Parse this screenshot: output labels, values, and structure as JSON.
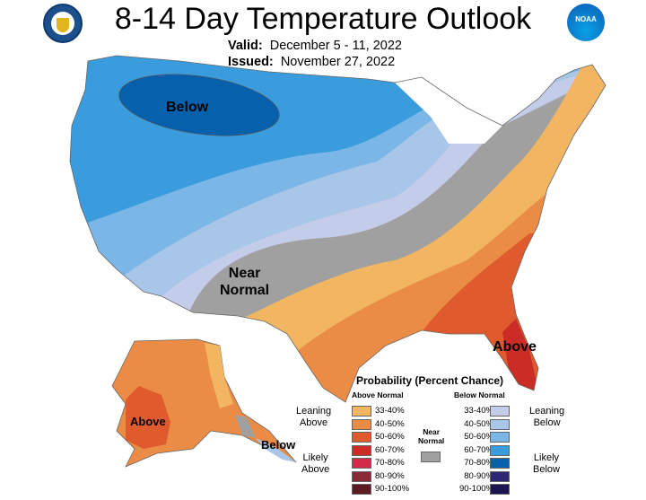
{
  "header": {
    "title": "8-14 Day Temperature Outlook",
    "valid_label": "Valid:",
    "valid_value": "December 5 - 11, 2022",
    "issued_label": "Issued:",
    "issued_value": "November 27, 2022",
    "left_logo": "department-of-commerce-seal",
    "right_logo": "NOAA"
  },
  "map_labels": {
    "below": "Below",
    "near_normal_1": "Near",
    "near_normal_2": "Normal",
    "above": "Above",
    "alaska_above": "Above",
    "alaska_below": "Below"
  },
  "legend": {
    "title": "Probability (Percent Chance)",
    "above_header": "Above Normal",
    "below_header": "Below Normal",
    "near_normal_1": "Near",
    "near_normal_2": "Normal",
    "near_normal_color": "#a0a0a0",
    "leaning_above_1": "Leaning",
    "leaning_above_2": "Above",
    "likely_above_1": "Likely",
    "likely_above_2": "Above",
    "leaning_below_1": "Leaning",
    "leaning_below_2": "Below",
    "likely_below_1": "Likely",
    "likely_below_2": "Below",
    "above": [
      {
        "range": "33-40%",
        "color": "#f2b662"
      },
      {
        "range": "40-50%",
        "color": "#ea8c45"
      },
      {
        "range": "50-60%",
        "color": "#df5a2c"
      },
      {
        "range": "60-70%",
        "color": "#cb2c26"
      },
      {
        "range": "70-80%",
        "color": "#d22c48"
      },
      {
        "range": "80-90%",
        "color": "#8a2a37"
      },
      {
        "range": "90-100%",
        "color": "#5c1b22"
      }
    ],
    "below": [
      {
        "range": "33-40%",
        "color": "#c3cde9"
      },
      {
        "range": "40-50%",
        "color": "#a8c6e8"
      },
      {
        "range": "50-60%",
        "color": "#7ab6e6"
      },
      {
        "range": "60-70%",
        "color": "#3a9cdd"
      },
      {
        "range": "70-80%",
        "color": "#0760ab"
      },
      {
        "range": "80-90%",
        "color": "#2d2676"
      },
      {
        "range": "90-100%",
        "color": "#1c1450"
      }
    ]
  }
}
